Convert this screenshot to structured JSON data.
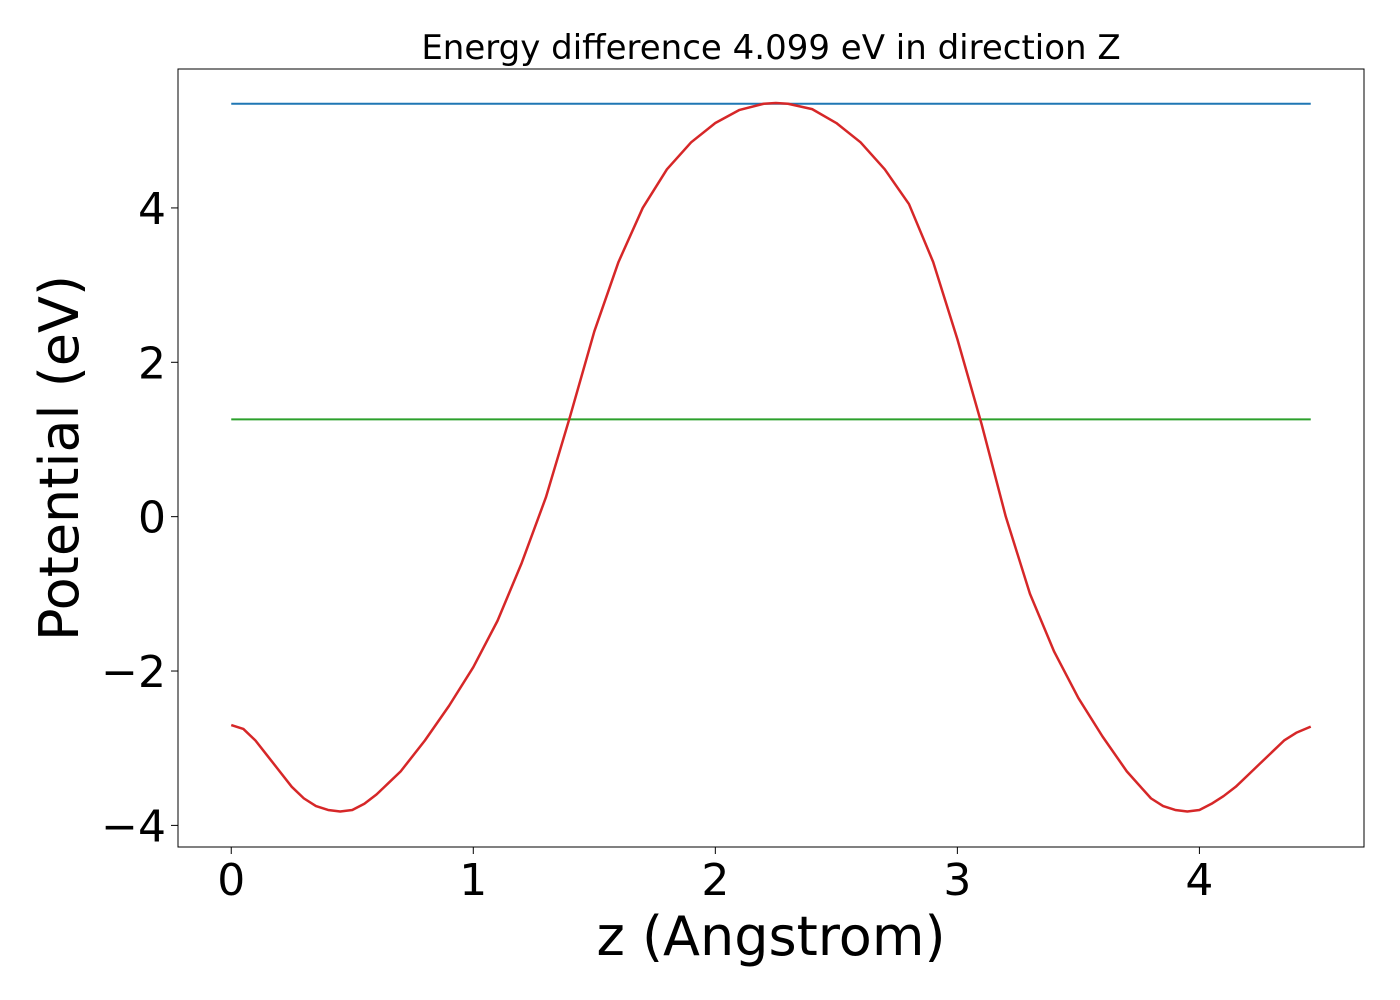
{
  "chart_data": {
    "type": "line",
    "title": "Energy difference 4.099 eV in direction Z",
    "xlabel": "z (Angstrom)",
    "ylabel": "Potential (eV)",
    "xlim": [
      -0.22,
      4.68
    ],
    "ylim": [
      -4.28,
      5.8
    ],
    "xticks": [
      0,
      1,
      2,
      3,
      4
    ],
    "xtick_labels": [
      "0",
      "1",
      "2",
      "3",
      "4"
    ],
    "yticks": [
      -4,
      -2,
      0,
      2,
      4
    ],
    "ytick_labels": [
      "−4",
      "−2",
      "0",
      "2",
      "4"
    ],
    "grid": false,
    "series": [
      {
        "color": "#1f77b4",
        "x": [
          0,
          4.46
        ],
        "y": [
          5.35,
          5.35
        ]
      },
      {
        "color": "#2ca02c",
        "x": [
          0,
          4.46
        ],
        "y": [
          1.26,
          1.26
        ]
      },
      {
        "color": "#d62728",
        "x": [
          0,
          0.05,
          0.1,
          0.15,
          0.2,
          0.25,
          0.3,
          0.35,
          0.4,
          0.45,
          0.5,
          0.55,
          0.6,
          0.65,
          0.7,
          0.8,
          0.9,
          1.0,
          1.1,
          1.2,
          1.3,
          1.4,
          1.5,
          1.6,
          1.7,
          1.8,
          1.9,
          2.0,
          2.1,
          2.2,
          2.25,
          2.3,
          2.4,
          2.5,
          2.6,
          2.7,
          2.8,
          2.9,
          3.0,
          3.1,
          3.2,
          3.3,
          3.4,
          3.5,
          3.6,
          3.7,
          3.8,
          3.85,
          3.9,
          3.95,
          4.0,
          4.05,
          4.1,
          4.15,
          4.2,
          4.25,
          4.3,
          4.35,
          4.4,
          4.46
        ],
        "y": [
          -2.7,
          -2.75,
          -2.9,
          -3.1,
          -3.3,
          -3.5,
          -3.65,
          -3.75,
          -3.8,
          -3.82,
          -3.8,
          -3.72,
          -3.6,
          -3.45,
          -3.3,
          -2.9,
          -2.45,
          -1.95,
          -1.35,
          -0.6,
          0.25,
          1.3,
          2.4,
          3.3,
          4.0,
          4.5,
          4.85,
          5.1,
          5.27,
          5.35,
          5.36,
          5.35,
          5.28,
          5.1,
          4.85,
          4.5,
          4.05,
          3.3,
          2.3,
          1.2,
          0.0,
          -1.0,
          -1.75,
          -2.35,
          -2.85,
          -3.3,
          -3.65,
          -3.75,
          -3.8,
          -3.82,
          -3.8,
          -3.72,
          -3.62,
          -3.5,
          -3.35,
          -3.2,
          -3.05,
          -2.9,
          -2.8,
          -2.72
        ]
      }
    ]
  }
}
